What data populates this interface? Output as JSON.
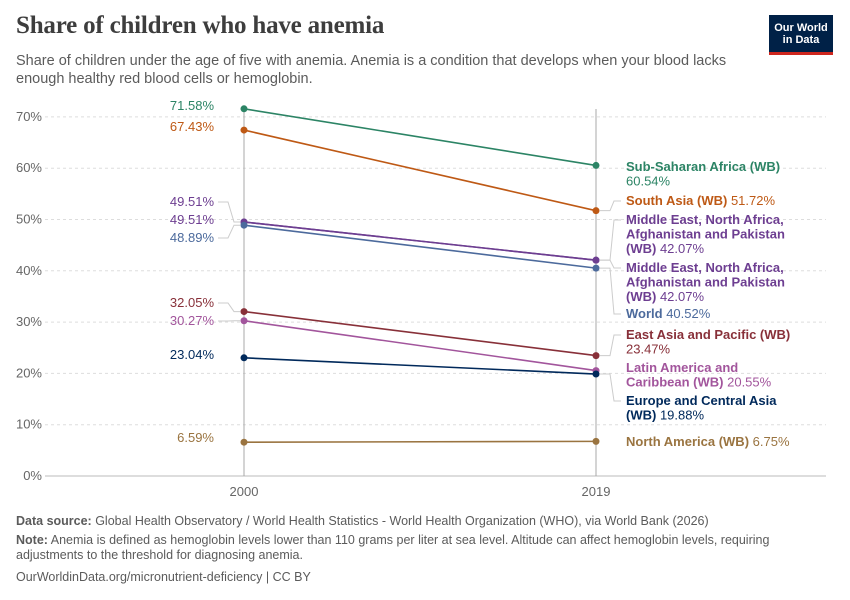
{
  "header": {
    "title": "Share of children who have anemia",
    "subtitle": "Share of children under the age of five with anemia. Anemia is a condition that develops when your blood lacks enough healthy red blood cells or hemoglobin."
  },
  "logo": {
    "line1": "Our World",
    "line2": "in Data",
    "bg_color": "#002147",
    "accent_color": "#ce261e"
  },
  "footer": {
    "source_label": "Data source:",
    "source_text": " Global Health Observatory / World Health Statistics - World Health Organization (WHO), via World Bank (2026)",
    "note_label": "Note:",
    "note_text": " Anemia is defined as hemoglobin levels lower than 110 grams per liter at sea level. Altitude can affect hemoglobin levels, requiring adjustments to the threshold for diagnosing anemia.",
    "url_text": "OurWorldinData.org/micronutrient-deficiency | CC BY"
  },
  "chart_data": {
    "type": "line",
    "title": "Share of children who have anemia",
    "x": [
      2000,
      2019
    ],
    "ylim": [
      0,
      70
    ],
    "yticks": [
      0,
      10,
      20,
      30,
      40,
      50,
      60,
      70
    ],
    "ytick_labels": [
      "0%",
      "10%",
      "20%",
      "30%",
      "40%",
      "50%",
      "60%",
      "70%"
    ],
    "grid": true,
    "series": [
      {
        "name": "Sub-Saharan Africa (WB)",
        "values": [
          71.58,
          60.54
        ],
        "start_label": "71.58%",
        "end_label": "60.54%",
        "color": "#2c8465"
      },
      {
        "name": "South Asia (WB)",
        "values": [
          67.43,
          51.72
        ],
        "start_label": "67.43%",
        "end_label": "51.72%",
        "color": "#be5915"
      },
      {
        "name": "Middle East, North Africa, Afghanistan and Pakistan (WB)",
        "values": [
          49.51,
          42.07
        ],
        "start_label": "49.51%",
        "end_label": "42.07%",
        "color": "#6d3e91"
      },
      {
        "name": "Middle East, North Africa, Afghanistan and Pakistan (WB)",
        "values": [
          49.51,
          42.07
        ],
        "start_label": "49.51%",
        "end_label": "42.07%",
        "color": "#6d3e91"
      },
      {
        "name": "World",
        "values": [
          48.89,
          40.52
        ],
        "start_label": "48.89%",
        "end_label": "40.52%",
        "color": "#4c6a9c"
      },
      {
        "name": "East Asia and Pacific (WB)",
        "values": [
          32.05,
          23.47
        ],
        "start_label": "32.05%",
        "end_label": "23.47%",
        "color": "#883039"
      },
      {
        "name": "Latin America and Caribbean (WB)",
        "values": [
          30.27,
          20.55
        ],
        "start_label": "30.27%",
        "end_label": "20.55%",
        "color": "#a2559c"
      },
      {
        "name": "Europe and Central Asia (WB)",
        "values": [
          23.04,
          19.88
        ],
        "start_label": "23.04%",
        "end_label": "19.88%",
        "color": "#00295b"
      },
      {
        "name": "North America (WB)",
        "values": [
          6.59,
          6.75
        ],
        "start_label": "6.59%",
        "end_label": "6.75%",
        "color": "#9a7440"
      }
    ]
  }
}
